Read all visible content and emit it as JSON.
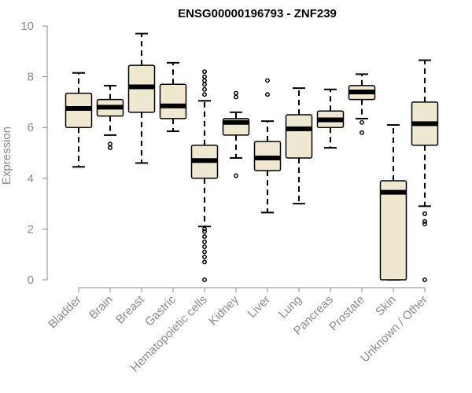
{
  "chart_data": {
    "type": "boxplot",
    "title": "ENSG00000196793 - ZNF239",
    "xlabel": "",
    "ylabel": "Expression",
    "ylim": [
      0,
      10
    ],
    "yticks": [
      0,
      2,
      4,
      6,
      8,
      10
    ],
    "grid": false,
    "colors": {
      "box_fill": "#efe8d0",
      "box_stroke": "#000000",
      "median": "#000000",
      "axis": "#8a8a8a",
      "label": "#8a8a8a"
    },
    "categories": [
      "Bladder",
      "Brain",
      "Breast",
      "Gastric",
      "Hematopoietic cells",
      "Kidney",
      "Liver",
      "Lung",
      "Pancreas",
      "Prostate",
      "Skin",
      "Unknown / Other"
    ],
    "boxes": [
      {
        "name": "Bladder",
        "whisker_low": 4.45,
        "q1": 6.0,
        "median": 6.75,
        "q3": 7.35,
        "whisker_high": 8.15,
        "outliers": []
      },
      {
        "name": "Brain",
        "whisker_low": 5.7,
        "q1": 6.45,
        "median": 6.8,
        "q3": 7.1,
        "whisker_high": 7.65,
        "outliers": [
          5.2,
          5.35
        ]
      },
      {
        "name": "Breast",
        "whisker_low": 4.6,
        "q1": 6.6,
        "median": 7.6,
        "q3": 8.45,
        "whisker_high": 9.7,
        "outliers": []
      },
      {
        "name": "Gastric",
        "whisker_low": 5.85,
        "q1": 6.35,
        "median": 6.85,
        "q3": 7.7,
        "whisker_high": 8.55,
        "outliers": []
      },
      {
        "name": "Hematopoietic cells",
        "whisker_low": 2.1,
        "q1": 4.0,
        "median": 4.7,
        "q3": 5.3,
        "whisker_high": 7.05,
        "outliers": [
          0.0,
          0.7,
          0.9,
          1.1,
          1.3,
          1.5,
          1.7,
          1.9,
          2.0,
          7.3,
          7.5,
          7.7,
          7.85,
          8.0,
          8.2
        ]
      },
      {
        "name": "Kidney",
        "whisker_low": 4.8,
        "q1": 5.7,
        "median": 6.2,
        "q3": 6.35,
        "whisker_high": 6.6,
        "outliers": [
          4.1,
          7.2,
          7.35
        ]
      },
      {
        "name": "Liver",
        "whisker_low": 2.65,
        "q1": 4.3,
        "median": 4.8,
        "q3": 5.45,
        "whisker_high": 6.25,
        "outliers": [
          7.3,
          7.85
        ]
      },
      {
        "name": "Lung",
        "whisker_low": 3.0,
        "q1": 4.8,
        "median": 5.95,
        "q3": 6.5,
        "whisker_high": 7.55,
        "outliers": []
      },
      {
        "name": "Pancreas",
        "whisker_low": 5.2,
        "q1": 6.0,
        "median": 6.3,
        "q3": 6.65,
        "whisker_high": 7.5,
        "outliers": []
      },
      {
        "name": "Prostate",
        "whisker_low": 6.35,
        "q1": 7.1,
        "median": 7.4,
        "q3": 7.65,
        "whisker_high": 8.1,
        "outliers": [
          5.8,
          6.2
        ]
      },
      {
        "name": "Skin",
        "whisker_low": 0.0,
        "q1": 0.0,
        "median": 3.45,
        "q3": 3.9,
        "whisker_high": 6.1,
        "outliers": []
      },
      {
        "name": "Unknown / Other",
        "whisker_low": 2.9,
        "q1": 5.3,
        "median": 6.15,
        "q3": 7.0,
        "whisker_high": 8.65,
        "outliers": [
          0.0,
          2.2,
          2.3,
          2.6
        ]
      }
    ]
  }
}
